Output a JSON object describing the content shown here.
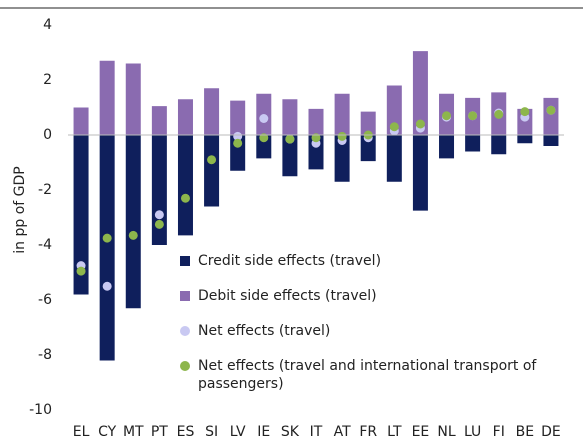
{
  "chart_data": {
    "type": "bar",
    "y_label": "in pp of GDP",
    "categories": [
      "EL",
      "CY",
      "MT",
      "PT",
      "ES",
      "SI",
      "LV",
      "IE",
      "SK",
      "IT",
      "AT",
      "FR",
      "LT",
      "EE",
      "NL",
      "LU",
      "FI",
      "BE",
      "DE"
    ],
    "series": [
      {
        "name": "Credit side effects (travel)",
        "kind": "bar",
        "color": "#0f1f5c",
        "values": [
          -5.8,
          -8.2,
          -6.3,
          -4.0,
          -3.65,
          -2.6,
          -1.3,
          -0.85,
          -1.5,
          -1.25,
          -1.7,
          -0.95,
          -1.7,
          -2.75,
          -0.85,
          -0.6,
          -0.7,
          -0.3,
          -0.4
        ]
      },
      {
        "name": "Debit side effects (travel)",
        "kind": "bar",
        "color": "#8a6bb0",
        "values": [
          1.0,
          2.7,
          2.6,
          1.05,
          1.3,
          1.7,
          1.25,
          1.5,
          1.3,
          0.95,
          1.5,
          0.85,
          1.8,
          3.05,
          1.5,
          1.35,
          1.55,
          0.95,
          1.35
        ]
      },
      {
        "name": "Net effects (travel)",
        "kind": "dot",
        "color": "#c9c9f2",
        "values": [
          -4.75,
          -5.5,
          null,
          -2.9,
          null,
          null,
          -0.05,
          0.6,
          -0.15,
          -0.3,
          -0.2,
          -0.1,
          0.15,
          0.25,
          0.65,
          0.7,
          0.8,
          0.65,
          0.9
        ]
      },
      {
        "name": "Net effects (travel and international transport of passengers)",
        "kind": "dot",
        "color": "#8db64c",
        "values": [
          -4.95,
          -3.75,
          -3.65,
          -3.25,
          -2.3,
          -0.9,
          -0.3,
          -0.1,
          -0.15,
          -0.1,
          -0.05,
          0.0,
          0.3,
          0.4,
          0.7,
          0.7,
          0.75,
          0.85,
          0.9
        ]
      }
    ],
    "ylim": [
      -10,
      4
    ],
    "yticks": [
      -10,
      -8,
      -6,
      -4,
      -2,
      0,
      2,
      4
    ]
  }
}
